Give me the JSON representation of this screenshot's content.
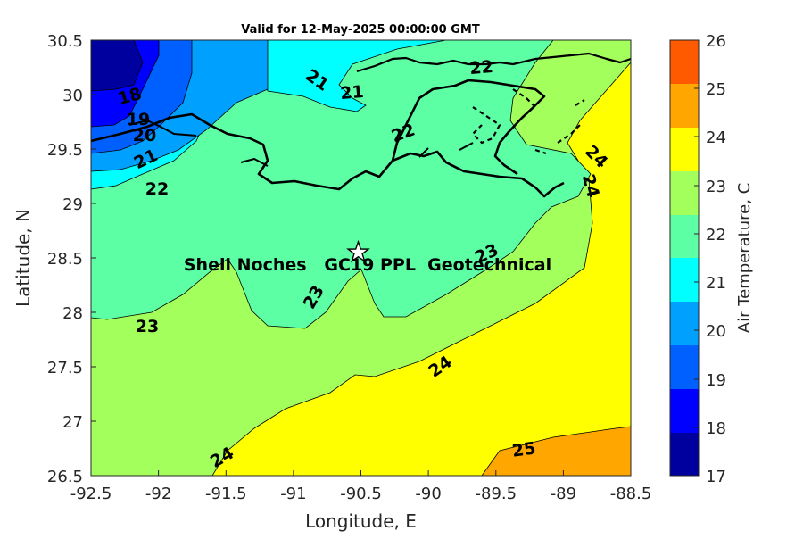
{
  "title": "Valid for 12-May-2025 00:00:00 GMT",
  "xlabel": "Longitude, E",
  "ylabel": "Latitude, N",
  "colorbar_label": "Air Temperature, C",
  "x_ticks": [
    "-92.5",
    "-92",
    "-91.5",
    "-91",
    "-90.5",
    "-90",
    "-89.5",
    "-89",
    "-88.5"
  ],
  "y_ticks": [
    "30.5",
    "30",
    "29.5",
    "29",
    "28.5",
    "28",
    "27.5",
    "27",
    "26.5"
  ],
  "colorbar_ticks": [
    "26",
    "25",
    "24",
    "23",
    "22",
    "21",
    "20",
    "19",
    "18",
    "17"
  ],
  "site_label": "Shell Noches   GC19 PPL  Geotechnical",
  "site_marker": "star-icon",
  "site_location": {
    "lon": -90.52,
    "lat": 28.55
  },
  "contour_labels": [
    "18",
    "19",
    "20",
    "21",
    "22",
    "21",
    "21",
    "22",
    "22",
    "23",
    "23",
    "23",
    "24",
    "24",
    "24",
    "24",
    "25"
  ],
  "colors": {
    "c17_18": "#00009f",
    "c18_19": "#0000ff",
    "c19_20": "#0060ff",
    "c20_21": "#00a0ff",
    "c21_22": "#00ffff",
    "c22_23": "#5cffa3",
    "c23_24": "#a3ff5c",
    "c24_25": "#ffff00",
    "c25_26": "#ffa600",
    "c26_plus": "#ff5a00"
  },
  "chart_data": {
    "type": "heatmap",
    "title": "Valid for 12-May-2025 00:00:00 GMT",
    "xlabel": "Longitude, E",
    "ylabel": "Latitude, N",
    "xlim": [
      -92.5,
      -88.5
    ],
    "ylim": [
      26.5,
      30.5
    ],
    "clim": [
      17,
      26
    ],
    "colorbar_label": "Air Temperature, C",
    "contour_levels": [
      18,
      19,
      20,
      21,
      22,
      23,
      24,
      25
    ],
    "grid": false
  }
}
